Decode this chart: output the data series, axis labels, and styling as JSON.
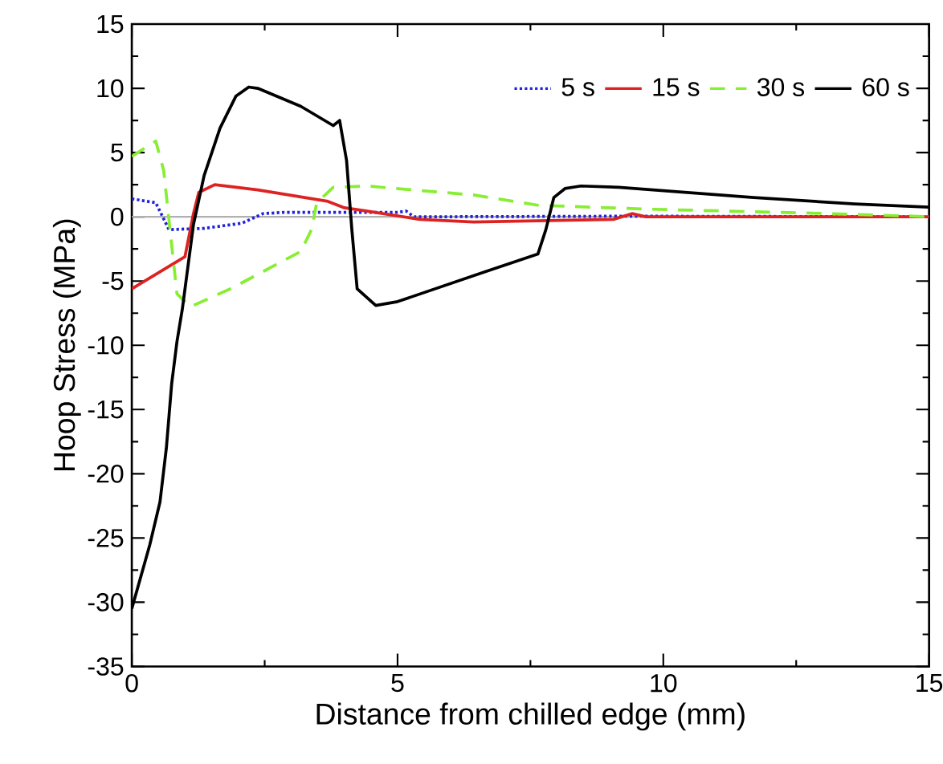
{
  "chart_data": {
    "type": "line",
    "xlabel": "Distance from chilled edge (mm)",
    "ylabel": "Hoop Stress (MPa)",
    "xlim": [
      0,
      15
    ],
    "ylim": [
      -35,
      15
    ],
    "xticks": [
      0,
      5,
      10,
      15
    ],
    "yticks": [
      -35,
      -30,
      -25,
      -20,
      -15,
      -10,
      -5,
      0,
      5,
      10,
      15
    ],
    "grid": false,
    "legend": "top right",
    "marker": "none",
    "ref_lines": [
      {
        "axis": "y",
        "value": 0,
        "color": "#b0b0b0"
      }
    ],
    "series": [
      {
        "name": "5 s",
        "color": "#2222dd",
        "line_style": "dotted",
        "x": [
          0,
          0.45,
          0.7,
          1.36,
          2.07,
          2.47,
          2.87,
          5.0,
          5.16,
          5.31,
          9.46,
          15
        ],
        "values": [
          1.4,
          1.1,
          -1.0,
          -0.9,
          -0.5,
          0.25,
          0.35,
          0.35,
          0.45,
          0,
          0.05,
          0
        ]
      },
      {
        "name": "15 s",
        "color": "#dd2222",
        "line_style": "solid",
        "x": [
          0,
          1.0,
          1.16,
          1.26,
          1.56,
          2.37,
          3.69,
          4.0,
          4.41,
          5.42,
          6.43,
          9.06,
          9.41,
          9.67,
          15
        ],
        "values": [
          -5.6,
          -3.1,
          0.25,
          1.9,
          2.5,
          2.1,
          1.2,
          0.7,
          0.45,
          -0.2,
          -0.4,
          -0.2,
          0.25,
          0,
          0
        ]
      },
      {
        "name": "30 s",
        "color": "#88ee33",
        "line_style": "dashed",
        "x": [
          0,
          0.45,
          0.6,
          0.75,
          0.85,
          1.1,
          1.86,
          3.18,
          3.38,
          3.48,
          3.79,
          4.41,
          6.43,
          7.64,
          9.67,
          12.7,
          14.7,
          15
        ],
        "values": [
          4.7,
          5.9,
          3.6,
          -2.2,
          -6.0,
          -7.0,
          -5.6,
          -2.7,
          -1.0,
          1.1,
          2.3,
          2.4,
          1.7,
          0.9,
          0.6,
          0.3,
          0.05,
          0
        ]
      },
      {
        "name": "60 s",
        "color": "#000000",
        "line_style": "solid",
        "x": [
          0,
          0.34,
          0.53,
          0.65,
          0.75,
          0.85,
          0.95,
          1.16,
          1.36,
          1.66,
          1.96,
          2.2,
          2.37,
          3.18,
          3.79,
          3.91,
          4.04,
          4.14,
          4.24,
          4.59,
          5.0,
          6.63,
          7.64,
          7.79,
          7.94,
          8.15,
          8.45,
          9.16,
          11.7,
          13.6,
          15
        ],
        "values": [
          -30.5,
          -25.5,
          -22.2,
          -18,
          -13,
          -9.7,
          -7.2,
          -0.6,
          3.2,
          6.9,
          9.4,
          10.1,
          10.0,
          8.6,
          7.1,
          7.5,
          4.4,
          -1.0,
          -5.6,
          -6.9,
          -6.6,
          -4.3,
          -2.9,
          -1.0,
          1.5,
          2.2,
          2.4,
          2.3,
          1.5,
          1.0,
          0.75
        ]
      }
    ]
  }
}
